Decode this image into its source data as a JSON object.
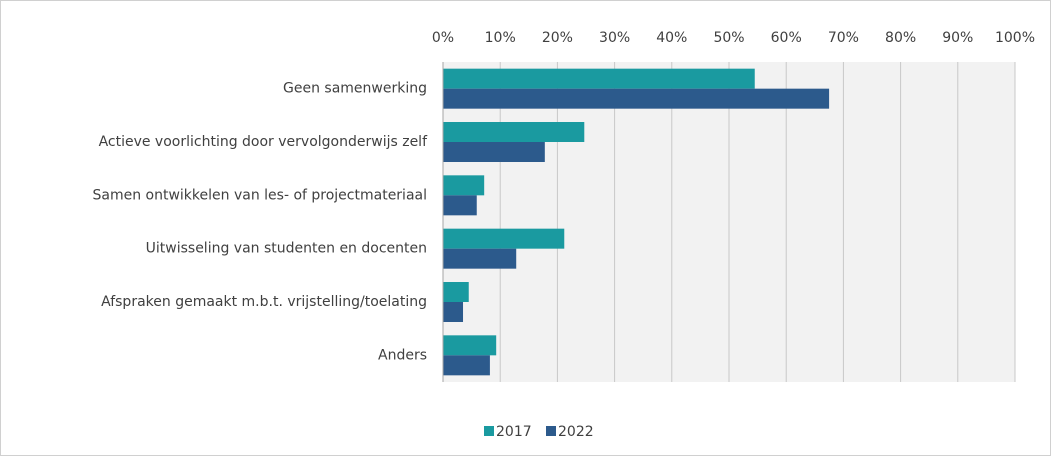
{
  "chart_data": {
    "type": "hbar",
    "categories": [
      "Geen samenwerking",
      "Actieve voorlichting door vervolgonderwijs zelf",
      "Samen ontwikkelen van les- of projectmateriaal",
      "Uitwisseling van studenten en docenten",
      "Afspraken gemaakt m.b.t. vrijstelling/toelating",
      "Anders"
    ],
    "series": [
      {
        "name": "2017",
        "color": "#1a9aa0",
        "values": [
          54.5,
          24.7,
          7.2,
          21.2,
          4.5,
          9.3
        ]
      },
      {
        "name": "2022",
        "color": "#2c5a8c",
        "values": [
          67.5,
          17.8,
          5.9,
          12.8,
          3.5,
          8.2
        ]
      }
    ],
    "xlim": [
      0,
      100
    ],
    "xticks": [
      {
        "value": 0,
        "label": "0%"
      },
      {
        "value": 10,
        "label": "10%"
      },
      {
        "value": 20,
        "label": "20%"
      },
      {
        "value": 30,
        "label": "30%"
      },
      {
        "value": 40,
        "label": "40%"
      },
      {
        "value": 50,
        "label": "50%"
      },
      {
        "value": 60,
        "label": "60%"
      },
      {
        "value": 70,
        "label": "70%"
      },
      {
        "value": 80,
        "label": "80%"
      },
      {
        "value": 90,
        "label": "90%"
      },
      {
        "value": 100,
        "label": "100%"
      }
    ],
    "grid": true,
    "legend": "bottom"
  }
}
